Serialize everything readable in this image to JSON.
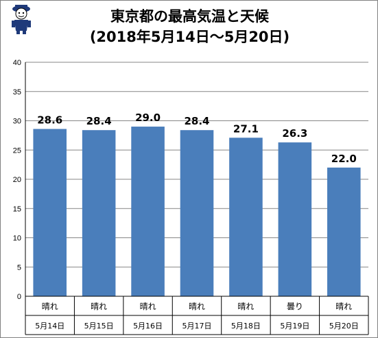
{
  "chart_data": {
    "type": "bar",
    "title_line1": "東京都の最高気温と天候",
    "title_line2": "(2018年5月14日～5月20日)",
    "categories": [
      "5月14日",
      "5月15日",
      "5月16日",
      "5月17日",
      "5月18日",
      "5月19日",
      "5月20日"
    ],
    "weather": [
      "晴れ",
      "晴れ",
      "晴れ",
      "晴れ",
      "晴れ",
      "曇り",
      "晴れ"
    ],
    "values": [
      28.6,
      28.4,
      29.0,
      28.4,
      27.1,
      26.3,
      22.0
    ],
    "value_labels": [
      "28.6",
      "28.4",
      "29.0",
      "28.4",
      "27.1",
      "26.3",
      "22.0"
    ],
    "ylim": [
      0,
      40
    ],
    "yticks": [
      0,
      5,
      10,
      15,
      20,
      25,
      30,
      35,
      40
    ],
    "grid": true,
    "legend": "none",
    "bar_color": "#4a7ebb",
    "grid_color": "#868686"
  }
}
